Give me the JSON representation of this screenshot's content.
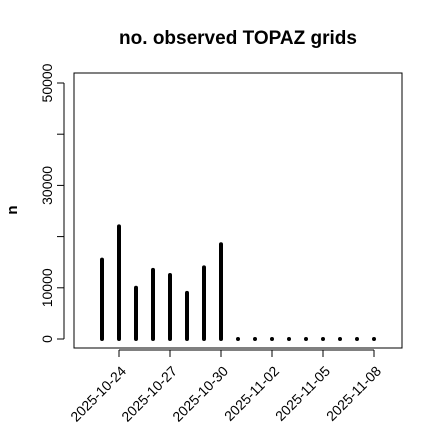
{
  "chart_data": {
    "type": "bar",
    "title": "no. observed TOPAZ grids",
    "xlabel": "",
    "ylabel": "n",
    "ylim": [
      0,
      55000
    ],
    "yticks": [
      0,
      10000,
      20000,
      30000,
      40000,
      50000
    ],
    "ytick_labels": [
      "0",
      "10000",
      "",
      "30000",
      "",
      "50000"
    ],
    "grid": false,
    "x_dates": [
      "2025-10-23",
      "2025-10-24",
      "2025-10-25",
      "2025-10-26",
      "2025-10-27",
      "2025-10-28",
      "2025-10-29",
      "2025-10-30",
      "2025-10-31",
      "2025-11-01",
      "2025-11-02",
      "2025-11-03",
      "2025-11-04",
      "2025-11-05",
      "2025-11-06",
      "2025-11-07",
      "2025-11-08"
    ],
    "values": [
      15500,
      22000,
      10000,
      13500,
      12500,
      9000,
      14000,
      18500,
      0,
      0,
      0,
      0,
      0,
      0,
      0,
      0,
      0
    ],
    "x_tick_dates": [
      "2025-10-24",
      "2025-10-27",
      "2025-10-30",
      "2025-11-02",
      "2025-11-05",
      "2025-11-08"
    ],
    "highlight_tick": "2025-10-30",
    "highlight_color": "#228B22",
    "bar_color": "#000000"
  }
}
